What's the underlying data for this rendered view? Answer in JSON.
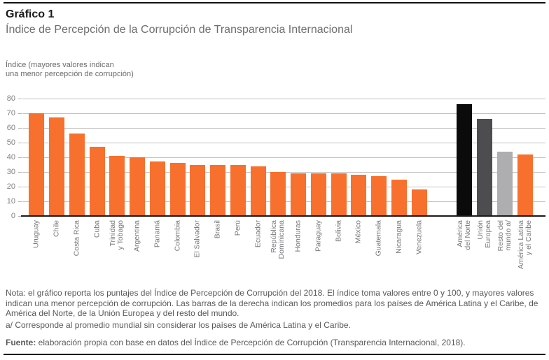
{
  "header": {
    "title": "Gráfico 1",
    "subtitle": "Índice de Percepción de la Corrupción de Transparencia Internacional"
  },
  "chart_data": {
    "type": "bar",
    "title": "Índice de Percepción de la Corrupción de Transparencia Internacional",
    "axis_note": "Índice (mayores valores indican\nuna menor percepción de corrupción)",
    "ylim": [
      0,
      80
    ],
    "yticks": [
      0,
      10,
      20,
      30,
      40,
      50,
      60,
      70,
      80
    ],
    "grid": true,
    "legend": "none",
    "colors": {
      "country_bar": "#f7702e",
      "north_america_bar": "#0b0b0b",
      "eu_bar": "#4d4d4f",
      "rest_of_world_bar": "#aeaeb0",
      "lac_bar": "#f7702e"
    },
    "countries": {
      "categories": [
        "Uruguay",
        "Chile",
        "Costa Rica",
        "Cuba",
        "Trinidad\ny Tobago",
        "Argentina",
        "Panamá",
        "Colombia",
        "El Salvador",
        "Brasil",
        "Perú",
        "Ecuador",
        "República\nDominicana",
        "Honduras",
        "Paraguay",
        "Bolivia",
        "México",
        "Guatemala",
        "Nicaragua",
        "Venezuela"
      ],
      "values": [
        70,
        67,
        56,
        47,
        41,
        40,
        37,
        36,
        35,
        35,
        35,
        34,
        30,
        29,
        29,
        29,
        28,
        27,
        25,
        18
      ]
    },
    "aggregates": {
      "items": [
        {
          "label": "América\ndel Norte",
          "value": 76,
          "color": "#0b0b0b"
        },
        {
          "label": "Unión\nEuropea",
          "value": 66,
          "color": "#4d4d4f"
        },
        {
          "label": "Resto del\nmundo a/",
          "value": 44,
          "color": "#aeaeb0"
        },
        {
          "label": "América Latina\ny el Caribe",
          "value": 42,
          "color": "#f7702e"
        }
      ]
    }
  },
  "notes": {
    "nota": "Nota: el gráfico reporta los puntajes del Índice de Percepción de Corrupción del 2018. El índice toma valores entre 0 y 100, y mayores valores indican una menor percepción de corrupción. Las barras de la derecha indican los promedios para los países de América Latina y el Caribe, de América del Norte, de la Unión Europea y del resto del mundo.",
    "footnote": "a/ Corresponde al promedio mundial sin considerar los países de América Latina y el Caribe.",
    "fuente_label": "Fuente:",
    "fuente_text": " elaboración propia con base en datos del Índice de Percepción de Corrupción (Transparencia Internacional, 2018)."
  }
}
